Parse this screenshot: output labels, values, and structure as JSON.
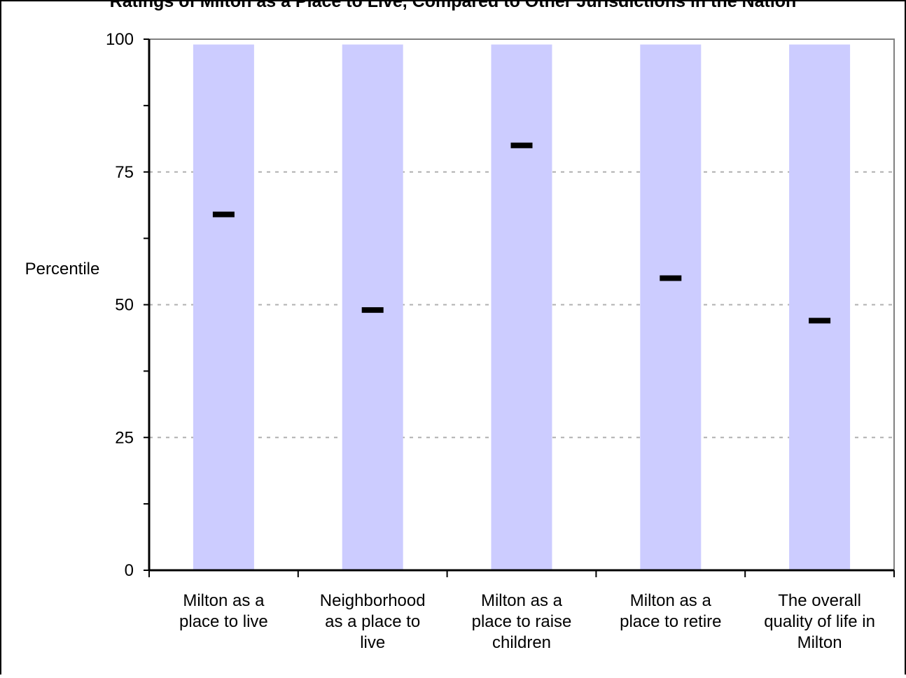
{
  "chart_data": {
    "type": "bar",
    "title": "Ratings of Milton as a Place to Live, Compared to Other Jurisdictions in the Nation",
    "ylabel": "Percentile",
    "xlabel": "",
    "ylim": [
      0,
      100
    ],
    "yticks": [
      0,
      25,
      50,
      75,
      100
    ],
    "minor_yticks": [
      12.5,
      37.5,
      62.5,
      87.5
    ],
    "grid": true,
    "categories": [
      [
        "Milton as a",
        "place to live"
      ],
      [
        "Neighborhood",
        "as a place to",
        "live"
      ],
      [
        "Milton as a",
        "place to raise",
        "children"
      ],
      [
        "Milton as a",
        "place to retire"
      ],
      [
        "The overall",
        "quality of life in",
        "Milton"
      ]
    ],
    "series": [
      {
        "values": [
          99,
          99,
          99,
          99,
          99
        ],
        "color": "#ccccff"
      },
      {
        "values": [
          67,
          49,
          80,
          55,
          47
        ],
        "color": "#000000"
      }
    ]
  }
}
